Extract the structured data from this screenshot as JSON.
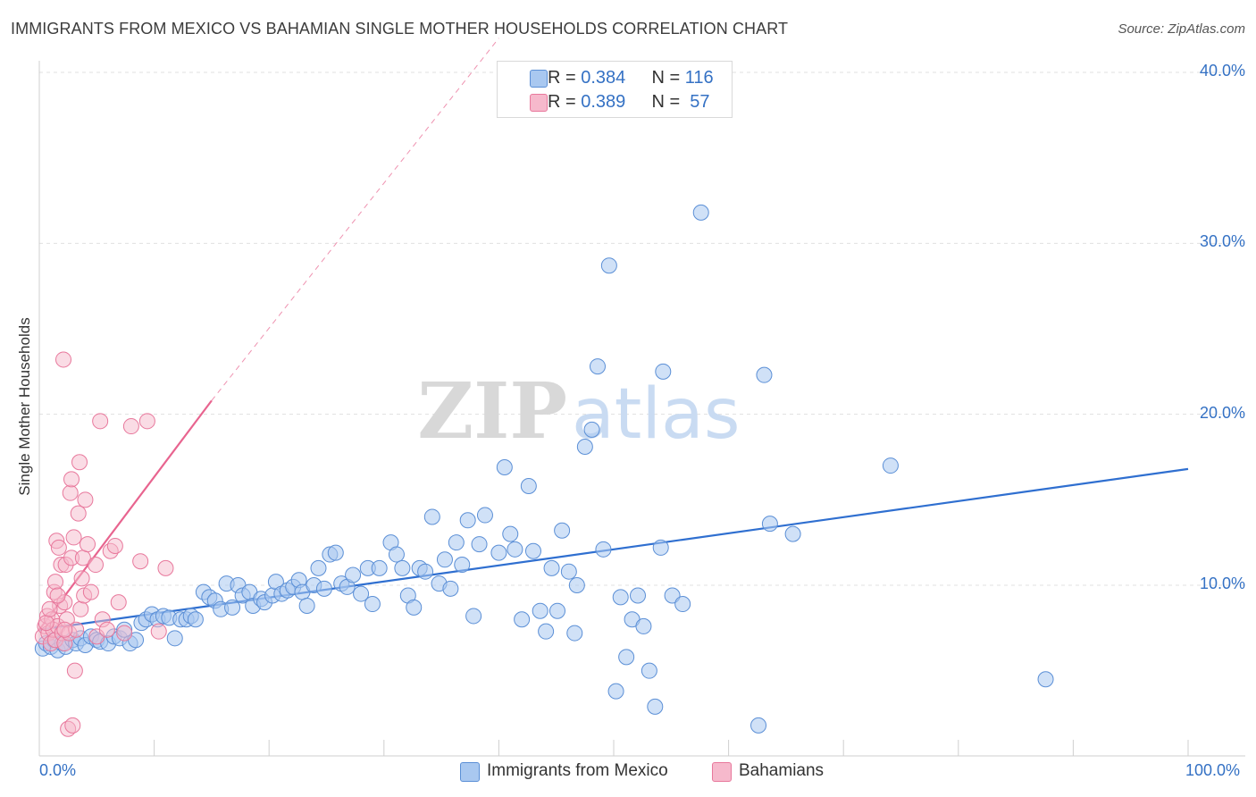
{
  "header": {
    "title": "IMMIGRANTS FROM MEXICO VS BAHAMIAN SINGLE MOTHER HOUSEHOLDS CORRELATION CHART",
    "source": "Source: ZipAtlas.com"
  },
  "legend_top": {
    "rows": [
      {
        "r_label": "R = ",
        "r_value": "0.384",
        "n_label": "N = ",
        "n_value": "116"
      },
      {
        "r_label": "R = ",
        "r_value": "0.389",
        "n_label": "N = ",
        "n_value": " 57"
      }
    ]
  },
  "legend_bottom": {
    "items": [
      "Immigrants from Mexico",
      "Bahamians"
    ]
  },
  "colors": {
    "blue_fill": "#a9c8f0",
    "blue_stroke": "#5b8fd6",
    "blue_line": "#2f6fd0",
    "pink_fill": "#f6b9cc",
    "pink_stroke": "#e8789c",
    "pink_line": "#e8648f",
    "grid": "#e0e0e0",
    "axis_text": "#3471c4"
  },
  "chart_data": {
    "type": "scatter",
    "title": "IMMIGRANTS FROM MEXICO VS BAHAMIAN SINGLE MOTHER HOUSEHOLDS CORRELATION CHART",
    "xlabel": "",
    "ylabel": "Single Mother Households",
    "xlim": [
      0,
      100
    ],
    "ylim": [
      0,
      41
    ],
    "x_tick_labels": [
      "0.0%",
      "100.0%"
    ],
    "y_ticks": [
      10,
      20,
      30,
      40
    ],
    "y_tick_labels": [
      "10.0%",
      "20.0%",
      "30.0%",
      "40.0%"
    ],
    "grid": true,
    "legend_position": "bottom",
    "watermark": "ZIPatlas",
    "series": [
      {
        "name": "Immigrants from Mexico",
        "color": "#5b8fd6",
        "r": 0.384,
        "n": 116,
        "trend": {
          "x": [
            0,
            100
          ],
          "y": [
            7.4,
            16.8
          ],
          "style": "solid"
        },
        "points": [
          [
            0.3,
            6.3
          ],
          [
            0.6,
            6.6
          ],
          [
            1.0,
            6.4
          ],
          [
            1.3,
            6.8
          ],
          [
            1.6,
            6.2
          ],
          [
            2.0,
            6.6
          ],
          [
            2.3,
            6.4
          ],
          [
            2.9,
            6.8
          ],
          [
            3.2,
            6.6
          ],
          [
            3.6,
            6.9
          ],
          [
            4.0,
            6.5
          ],
          [
            4.5,
            7.0
          ],
          [
            5.0,
            6.8
          ],
          [
            5.3,
            6.7
          ],
          [
            6.0,
            6.6
          ],
          [
            6.5,
            7.0
          ],
          [
            7.0,
            6.9
          ],
          [
            7.4,
            7.4
          ],
          [
            7.9,
            6.6
          ],
          [
            8.4,
            6.8
          ],
          [
            8.9,
            7.8
          ],
          [
            9.3,
            8.0
          ],
          [
            9.8,
            8.3
          ],
          [
            10.3,
            8.0
          ],
          [
            10.8,
            8.2
          ],
          [
            11.3,
            8.1
          ],
          [
            11.8,
            6.9
          ],
          [
            12.3,
            8.0
          ],
          [
            12.8,
            8.0
          ],
          [
            13.2,
            8.2
          ],
          [
            13.6,
            8.0
          ],
          [
            14.3,
            9.6
          ],
          [
            14.8,
            9.3
          ],
          [
            15.3,
            9.1
          ],
          [
            15.8,
            8.6
          ],
          [
            16.3,
            10.1
          ],
          [
            16.8,
            8.7
          ],
          [
            17.3,
            10.0
          ],
          [
            17.7,
            9.4
          ],
          [
            18.3,
            9.6
          ],
          [
            18.6,
            8.8
          ],
          [
            19.3,
            9.2
          ],
          [
            19.6,
            9.0
          ],
          [
            20.3,
            9.4
          ],
          [
            20.6,
            10.2
          ],
          [
            21.1,
            9.5
          ],
          [
            21.6,
            9.7
          ],
          [
            22.1,
            9.9
          ],
          [
            22.6,
            10.3
          ],
          [
            22.9,
            9.6
          ],
          [
            23.3,
            8.8
          ],
          [
            23.9,
            10.0
          ],
          [
            24.3,
            11.0
          ],
          [
            24.8,
            9.8
          ],
          [
            25.3,
            11.8
          ],
          [
            25.8,
            11.9
          ],
          [
            26.3,
            10.1
          ],
          [
            26.8,
            9.9
          ],
          [
            27.3,
            10.6
          ],
          [
            28.0,
            9.5
          ],
          [
            28.6,
            11.0
          ],
          [
            29.0,
            8.9
          ],
          [
            29.6,
            11.0
          ],
          [
            30.6,
            12.5
          ],
          [
            31.1,
            11.8
          ],
          [
            31.6,
            11.0
          ],
          [
            32.1,
            9.4
          ],
          [
            32.6,
            8.7
          ],
          [
            33.1,
            11.0
          ],
          [
            33.6,
            10.8
          ],
          [
            34.2,
            14.0
          ],
          [
            34.8,
            10.1
          ],
          [
            35.3,
            11.5
          ],
          [
            35.8,
            9.8
          ],
          [
            36.3,
            12.5
          ],
          [
            36.8,
            11.2
          ],
          [
            37.3,
            13.8
          ],
          [
            37.8,
            8.2
          ],
          [
            38.3,
            12.4
          ],
          [
            38.8,
            14.1
          ],
          [
            40.0,
            11.9
          ],
          [
            40.5,
            16.9
          ],
          [
            41.0,
            13.0
          ],
          [
            41.4,
            12.1
          ],
          [
            42.0,
            8.0
          ],
          [
            42.6,
            15.8
          ],
          [
            43.0,
            12.0
          ],
          [
            43.6,
            8.5
          ],
          [
            44.1,
            7.3
          ],
          [
            44.6,
            11.0
          ],
          [
            45.1,
            8.5
          ],
          [
            45.5,
            13.2
          ],
          [
            46.1,
            10.8
          ],
          [
            46.6,
            7.2
          ],
          [
            46.8,
            10.0
          ],
          [
            47.5,
            18.1
          ],
          [
            48.1,
            19.1
          ],
          [
            48.6,
            22.8
          ],
          [
            49.1,
            12.1
          ],
          [
            49.6,
            28.7
          ],
          [
            50.2,
            3.8
          ],
          [
            50.6,
            9.3
          ],
          [
            51.1,
            5.8
          ],
          [
            51.6,
            8.0
          ],
          [
            52.1,
            9.4
          ],
          [
            52.6,
            7.6
          ],
          [
            53.1,
            5.0
          ],
          [
            53.6,
            2.9
          ],
          [
            54.1,
            12.2
          ],
          [
            54.3,
            22.5
          ],
          [
            55.1,
            9.4
          ],
          [
            56.0,
            8.9
          ],
          [
            57.6,
            31.8
          ],
          [
            62.6,
            1.8
          ],
          [
            63.1,
            22.3
          ],
          [
            63.6,
            13.6
          ],
          [
            65.6,
            13.0
          ],
          [
            74.1,
            17.0
          ],
          [
            87.6,
            4.5
          ]
        ]
      },
      {
        "name": "Bahamians",
        "color": "#e8789c",
        "r": 0.389,
        "n": 57,
        "trend": {
          "x": [
            0,
            15.0
          ],
          "y": [
            7.4,
            20.8
          ],
          "style": "solid",
          "extended_to": [
            40.0,
            42.0
          ],
          "extended_style": "dashed"
        },
        "points": [
          [
            0.3,
            7.0
          ],
          [
            0.5,
            7.6
          ],
          [
            0.7,
            8.2
          ],
          [
            0.8,
            7.2
          ],
          [
            1.0,
            6.6
          ],
          [
            1.1,
            8.0
          ],
          [
            1.2,
            7.4
          ],
          [
            1.3,
            9.6
          ],
          [
            1.4,
            10.2
          ],
          [
            1.4,
            6.8
          ],
          [
            1.5,
            12.6
          ],
          [
            1.6,
            7.6
          ],
          [
            1.7,
            12.2
          ],
          [
            1.8,
            8.8
          ],
          [
            1.9,
            11.2
          ],
          [
            2.0,
            7.2
          ],
          [
            2.1,
            23.2
          ],
          [
            2.2,
            6.6
          ],
          [
            2.2,
            9.0
          ],
          [
            2.3,
            11.2
          ],
          [
            2.4,
            8.0
          ],
          [
            2.5,
            1.6
          ],
          [
            2.6,
            7.2
          ],
          [
            2.7,
            15.4
          ],
          [
            2.8,
            16.2
          ],
          [
            2.8,
            11.6
          ],
          [
            2.9,
            1.8
          ],
          [
            3.0,
            12.8
          ],
          [
            3.1,
            5.0
          ],
          [
            3.2,
            7.4
          ],
          [
            3.4,
            14.2
          ],
          [
            3.5,
            17.2
          ],
          [
            3.6,
            8.6
          ],
          [
            3.7,
            10.4
          ],
          [
            3.8,
            11.6
          ],
          [
            3.9,
            9.4
          ],
          [
            4.0,
            15.0
          ],
          [
            4.2,
            12.4
          ],
          [
            4.5,
            9.6
          ],
          [
            4.9,
            11.2
          ],
          [
            5.0,
            7.0
          ],
          [
            5.3,
            19.6
          ],
          [
            5.5,
            8.0
          ],
          [
            5.9,
            7.4
          ],
          [
            6.2,
            12.0
          ],
          [
            6.6,
            12.3
          ],
          [
            6.9,
            9.0
          ],
          [
            7.4,
            7.2
          ],
          [
            8.0,
            19.3
          ],
          [
            8.8,
            11.4
          ],
          [
            9.4,
            19.6
          ],
          [
            10.4,
            7.3
          ],
          [
            0.6,
            7.8
          ],
          [
            0.9,
            8.6
          ],
          [
            1.6,
            9.4
          ],
          [
            2.2,
            7.4
          ],
          [
            11.0,
            11.0
          ]
        ]
      }
    ]
  }
}
